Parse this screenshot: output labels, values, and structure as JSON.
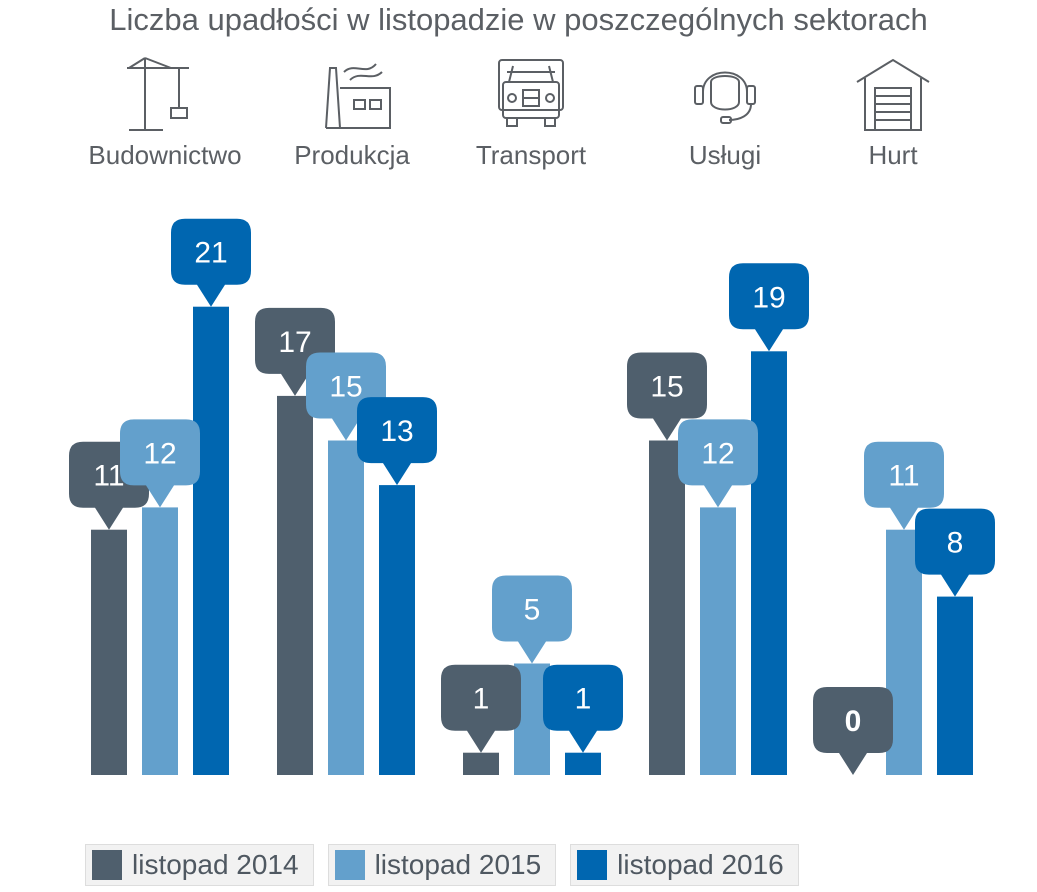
{
  "colors": {
    "s2014": "#4f5f6d",
    "s2015": "#63a0cc",
    "s2016": "#0066b0",
    "text": "#5b5f64",
    "icon": "#5b5f64"
  },
  "sectors": [
    {
      "label": "Budownictwo",
      "icon": "crane-icon"
    },
    {
      "label": "Produkcja",
      "icon": "factory-icon"
    },
    {
      "label": "Transport",
      "icon": "truck-icon"
    },
    {
      "label": "Usługi",
      "icon": "headset-icon"
    },
    {
      "label": "Hurt",
      "icon": "warehouse-icon"
    }
  ],
  "chart_data": {
    "type": "bar",
    "title": "Liczba upadłości w listopadzie w poszczególnych sektorach",
    "categories": [
      "Budownictwo",
      "Produkcja",
      "Transport",
      "Usługi",
      "Hurt"
    ],
    "series": [
      {
        "name": "listopad 2014",
        "values": [
          11,
          17,
          1,
          15,
          0
        ]
      },
      {
        "name": "listopad 2015",
        "values": [
          12,
          15,
          5,
          12,
          11
        ]
      },
      {
        "name": "listopad 2016",
        "values": [
          21,
          13,
          1,
          19,
          8
        ]
      }
    ],
    "xlabel": "",
    "ylabel": "",
    "ylim": [
      0,
      21
    ]
  }
}
